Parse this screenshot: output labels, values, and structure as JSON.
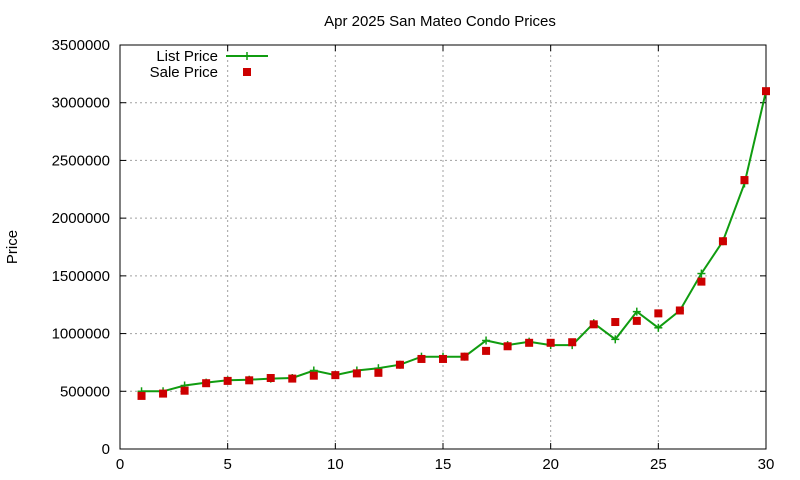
{
  "chart_data": {
    "type": "line",
    "title": "Apr 2025 San Mateo Condo Prices",
    "xlabel": "",
    "ylabel": "Price",
    "xlim": [
      0,
      30
    ],
    "ylim": [
      0,
      3500000
    ],
    "grid": true,
    "legend_position": "top-left",
    "x_ticks": [
      "0",
      "5",
      "10",
      "15",
      "20",
      "25",
      "30"
    ],
    "y_ticks": [
      "0",
      "500000",
      "1000000",
      "1500000",
      "2000000",
      "2500000",
      "3000000",
      "3500000"
    ],
    "series": [
      {
        "name": "List Price",
        "color": "#109c10",
        "style": "line-plus",
        "x": [
          1,
          2,
          3,
          4,
          5,
          6,
          7,
          8,
          9,
          10,
          11,
          12,
          13,
          14,
          15,
          16,
          17,
          18,
          19,
          20,
          21,
          22,
          23,
          24,
          25,
          26,
          27,
          28,
          29,
          30
        ],
        "values": [
          500000,
          500000,
          550000,
          575000,
          595000,
          600000,
          610000,
          615000,
          680000,
          640000,
          680000,
          700000,
          730000,
          800000,
          800000,
          800000,
          940000,
          900000,
          930000,
          900000,
          900000,
          1090000,
          950000,
          1190000,
          1050000,
          1200000,
          1520000,
          1800000,
          2300000,
          3100000
        ]
      },
      {
        "name": "Sale Price",
        "color": "#cc0000",
        "style": "square-marker",
        "x": [
          1,
          2,
          3,
          4,
          5,
          6,
          7,
          8,
          9,
          10,
          11,
          12,
          13,
          14,
          15,
          16,
          17,
          18,
          19,
          20,
          21,
          22,
          23,
          24,
          25,
          26,
          27,
          28,
          29,
          30
        ],
        "values": [
          460000,
          480000,
          505000,
          570000,
          590000,
          595000,
          615000,
          610000,
          635000,
          640000,
          655000,
          660000,
          730000,
          780000,
          780000,
          800000,
          850000,
          890000,
          920000,
          920000,
          925000,
          1080000,
          1100000,
          1110000,
          1175000,
          1200000,
          1450000,
          1800000,
          2330000,
          3100000
        ]
      }
    ]
  }
}
